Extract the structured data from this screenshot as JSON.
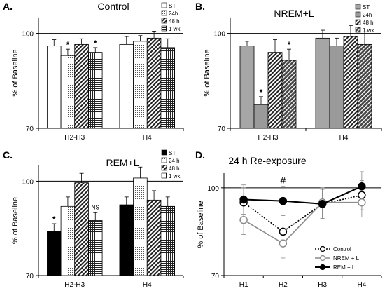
{
  "chart_data": [
    {
      "panel": "A.",
      "title": "Control",
      "type": "bar",
      "ylabel": "% of Baseline",
      "ylim": [
        70,
        105
      ],
      "yticks": [
        70,
        100
      ],
      "reference_line": 100,
      "categories": [
        "H2-H3",
        "H4"
      ],
      "series": [
        {
          "name": "ST",
          "values": [
            96,
            96.5
          ],
          "errors": [
            2,
            2.5
          ],
          "pattern": "white"
        },
        {
          "name": "24h",
          "values": [
            93,
            97.5
          ],
          "errors": [
            2,
            1.8
          ],
          "pattern": "dots"
        },
        {
          "name": "48 h",
          "values": [
            96.5,
            98.5
          ],
          "errors": [
            1.8,
            2.2
          ],
          "pattern": "diag"
        },
        {
          "name": "1 wk",
          "values": [
            94,
            95.5
          ],
          "errors": [
            1.5,
            2.8
          ],
          "pattern": "grid"
        }
      ],
      "annotations": [
        {
          "text": "*",
          "category": 0,
          "series": 1
        },
        {
          "text": "*",
          "category": 0,
          "series": 3
        }
      ]
    },
    {
      "panel": "B.",
      "title": "NREM+L",
      "type": "bar",
      "ylabel": "% of Baseline",
      "ylim": [
        70,
        105
      ],
      "yticks": [
        70,
        100
      ],
      "reference_line": 100,
      "categories": [
        "H2-H3",
        "H4"
      ],
      "series": [
        {
          "name": "ST",
          "values": [
            96,
            98.5
          ],
          "errors": [
            1.5,
            2.5
          ],
          "pattern": "gray"
        },
        {
          "name": "24h",
          "values": [
            77.5,
            96
          ],
          "errors": [
            2.5,
            2.5
          ],
          "pattern": "dots"
        },
        {
          "name": "48 h",
          "values": [
            94,
            99
          ],
          "errors": [
            4,
            3.5
          ],
          "pattern": "diag"
        },
        {
          "name": "1 wk",
          "values": [
            91.5,
            96.5
          ],
          "errors": [
            3.5,
            4
          ]
        }
      ],
      "annotations": [
        {
          "text": "*",
          "category": 0,
          "series": 1
        },
        {
          "text": "*",
          "category": 0,
          "series": 3
        }
      ]
    },
    {
      "panel": "C.",
      "title": "REM+L",
      "type": "bar",
      "ylabel": "% of Baseline",
      "ylim": [
        70,
        105
      ],
      "yticks": [
        70,
        100
      ],
      "reference_line": 100,
      "categories": [
        "H2-H3",
        "H4"
      ],
      "series": [
        {
          "name": "ST",
          "values": [
            84,
            92.5
          ],
          "errors": [
            2.5,
            2.5
          ],
          "pattern": "black"
        },
        {
          "name": "24 h",
          "values": [
            92,
            101
          ],
          "errors": [
            3,
            3.5
          ],
          "pattern": "dots"
        },
        {
          "name": "48 h",
          "values": [
            99.5,
            94
          ],
          "errors": [
            3,
            3
          ],
          "pattern": "diag"
        },
        {
          "name": "1 wk",
          "values": [
            87.5,
            92
          ],
          "errors": [
            2.5,
            3
          ],
          "pattern": "grid"
        }
      ],
      "annotations": [
        {
          "text": "*",
          "category": 0,
          "series": 0
        },
        {
          "text": "NS",
          "category": 0,
          "series": 3
        }
      ]
    },
    {
      "panel": "D.",
      "title": "24 h Re-exposure",
      "type": "line",
      "ylabel": "% of Baseline",
      "ylim": [
        70,
        105
      ],
      "yticks": [
        70,
        100
      ],
      "reference_line": 100,
      "categories": [
        "H1",
        "H2",
        "H3",
        "H4"
      ],
      "series": [
        {
          "name": "Control",
          "values": [
            95,
            85,
            94.5,
            97.5
          ],
          "errors": [
            5,
            5,
            5,
            5
          ],
          "style": "dotted",
          "marker": "open"
        },
        {
          "name": "NREM + L",
          "values": [
            89,
            81,
            95,
            95
          ],
          "errors": [
            5,
            5,
            5,
            5
          ],
          "style": "gray",
          "marker": "gray-open"
        },
        {
          "name": "REM + L",
          "values": [
            96,
            95.5,
            94.5,
            100.5
          ],
          "errors": [
            5,
            5,
            5,
            5
          ],
          "style": "solid",
          "marker": "filled"
        }
      ],
      "annotations": [
        {
          "text": "#",
          "category": 1
        }
      ]
    }
  ]
}
